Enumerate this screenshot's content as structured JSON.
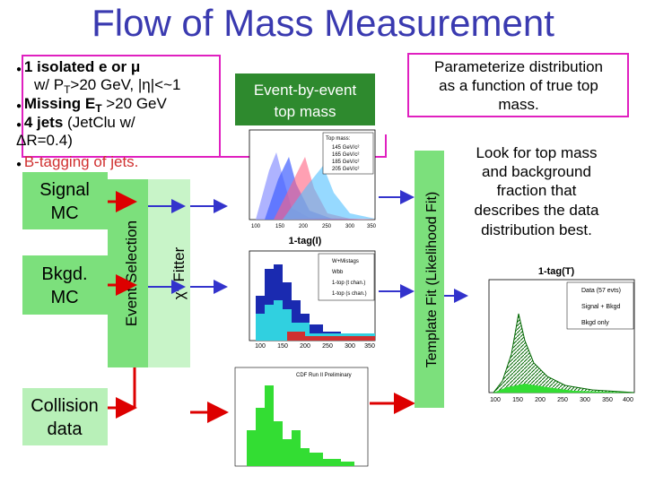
{
  "title": "Flow of Mass Measurement",
  "selection": {
    "line1": [
      "1 isolated e or μ"
    ],
    "line2": [
      "w/ P",
      "T",
      ">20 GeV, |η|<~1"
    ],
    "line3": [
      "Missing E",
      "T",
      " >20 GeV"
    ],
    "line4": [
      "4 jets",
      " (JetClu w/"
    ],
    "line5": [
      "ΔR=0.4)"
    ],
    "line6": [
      "B-tagging of jets."
    ]
  },
  "signal_mc": [
    "Signal",
    "MC"
  ],
  "bkgd_mc": [
    "Bkgd.",
    "MC"
  ],
  "collision_data": [
    "Collision",
    "data"
  ],
  "event_selection": "Event Selection",
  "fitter": [
    "χ",
    "2",
    " Fitter"
  ],
  "event_by_event": [
    "Event-by-event",
    "top mass"
  ],
  "parameterize": [
    "Parameterize distribution",
    "as a function of true top",
    "mass."
  ],
  "template_fit": "Template Fit (Likelihood Fit)",
  "look_for": [
    "Look for top mass",
    "and background",
    "fraction that",
    "describes the data",
    "distribution best."
  ],
  "plot_templates": {
    "legend_title": "Top mass:",
    "legend": [
      "145 GeV/c²",
      "165 GeV/c²",
      "185 GeV/c²",
      "205 GeV/c²"
    ],
    "x_ticks": [
      "100",
      "150",
      "200",
      "250",
      "300",
      "350"
    ]
  },
  "plot_fit": {
    "title": "1-tag(I)",
    "legend": [
      "W+Mistags",
      "Wbb",
      "1-top (t chan.)",
      "1-top (s chan.)"
    ],
    "x_ticks": [
      "100",
      "150",
      "200",
      "250",
      "300",
      "350"
    ]
  },
  "plot_data": {
    "note": "CDF Run II Preliminary"
  },
  "plot_result": {
    "title": "1-tag(T)",
    "legend": [
      "Data (57 evts)",
      "Signal + Bkgd",
      "Bkgd only"
    ],
    "x_ticks": [
      "100",
      "150",
      "200",
      "250",
      "300",
      "350",
      "400"
    ]
  }
}
